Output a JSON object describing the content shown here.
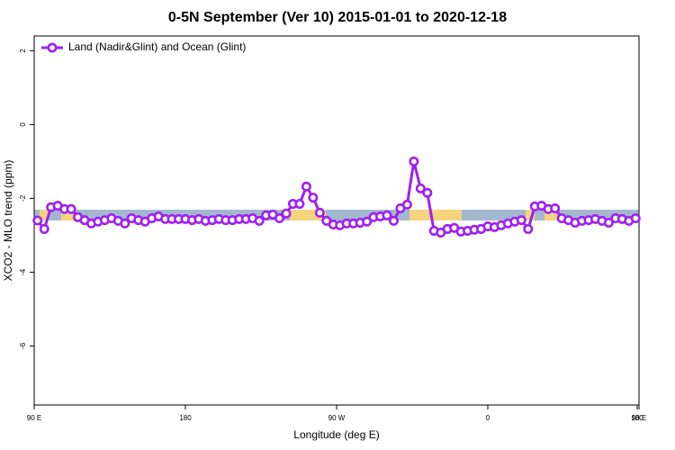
{
  "chart_data": {
    "type": "line",
    "title": "0-5N September (Ver 10)   2015-01-01 to 2020-12-18",
    "x_label": "Longitude (deg E)",
    "y_label": "XCO2 - MLO trend (ppm)",
    "xlim": [
      90,
      450
    ],
    "xticks": [
      {
        "value": 90,
        "label": "90 E"
      },
      {
        "value": 180,
        "label": "180"
      },
      {
        "value": 270,
        "label": "90 W"
      },
      {
        "value": 360,
        "label": "0"
      },
      {
        "value": 450,
        "label": "90 E"
      },
      {
        "value": 540,
        "label": "180"
      }
    ],
    "ylim": [
      -7.6,
      2.4
    ],
    "yticks": [
      2,
      0,
      -2,
      -4,
      -6
    ],
    "legend": "top-left",
    "x": [
      92,
      96,
      100,
      104,
      108,
      112,
      116,
      120,
      124,
      128,
      132,
      136,
      140,
      144,
      148,
      152,
      156,
      160,
      164,
      168,
      172,
      176,
      180,
      184,
      188,
      192,
      196,
      200,
      204,
      208,
      212,
      216,
      220,
      224,
      228,
      232,
      236,
      240,
      244,
      248,
      252,
      256,
      260,
      264,
      268,
      272,
      276,
      280,
      284,
      288,
      292,
      296,
      300,
      304,
      308,
      312,
      316,
      320,
      324,
      328,
      332,
      336,
      340,
      344,
      348,
      352,
      356,
      360,
      364,
      368,
      372,
      376,
      380,
      384,
      388,
      392,
      396,
      400,
      404,
      408,
      412,
      416,
      420,
      424,
      428,
      432,
      436,
      440,
      444,
      448
    ],
    "series": [
      {
        "name": "Land (Nadir&Glint) and Ocean (Glint)",
        "color": "#a020f0",
        "values": [
          -2.6,
          -2.83,
          -2.24,
          -2.2,
          -2.29,
          -2.29,
          -2.51,
          -2.59,
          -2.68,
          -2.63,
          -2.59,
          -2.54,
          -2.61,
          -2.68,
          -2.54,
          -2.59,
          -2.63,
          -2.54,
          -2.49,
          -2.56,
          -2.56,
          -2.56,
          -2.56,
          -2.59,
          -2.56,
          -2.61,
          -2.59,
          -2.56,
          -2.59,
          -2.59,
          -2.56,
          -2.56,
          -2.54,
          -2.61,
          -2.46,
          -2.44,
          -2.54,
          -2.41,
          -2.15,
          -2.15,
          -1.68,
          -1.98,
          -2.39,
          -2.61,
          -2.71,
          -2.73,
          -2.68,
          -2.68,
          -2.66,
          -2.63,
          -2.51,
          -2.49,
          -2.46,
          -2.61,
          -2.27,
          -2.17,
          -1.0,
          -1.73,
          -1.85,
          -2.88,
          -2.93,
          -2.83,
          -2.8,
          -2.9,
          -2.88,
          -2.85,
          -2.83,
          -2.76,
          -2.78,
          -2.73,
          -2.68,
          -2.63,
          -2.59,
          -2.83,
          -2.22,
          -2.2,
          -2.29,
          -2.27,
          -2.54,
          -2.59,
          -2.66,
          -2.61,
          -2.59,
          -2.56,
          -2.61,
          -2.66,
          -2.54,
          -2.56,
          -2.61,
          -2.54
        ]
      }
    ]
  }
}
